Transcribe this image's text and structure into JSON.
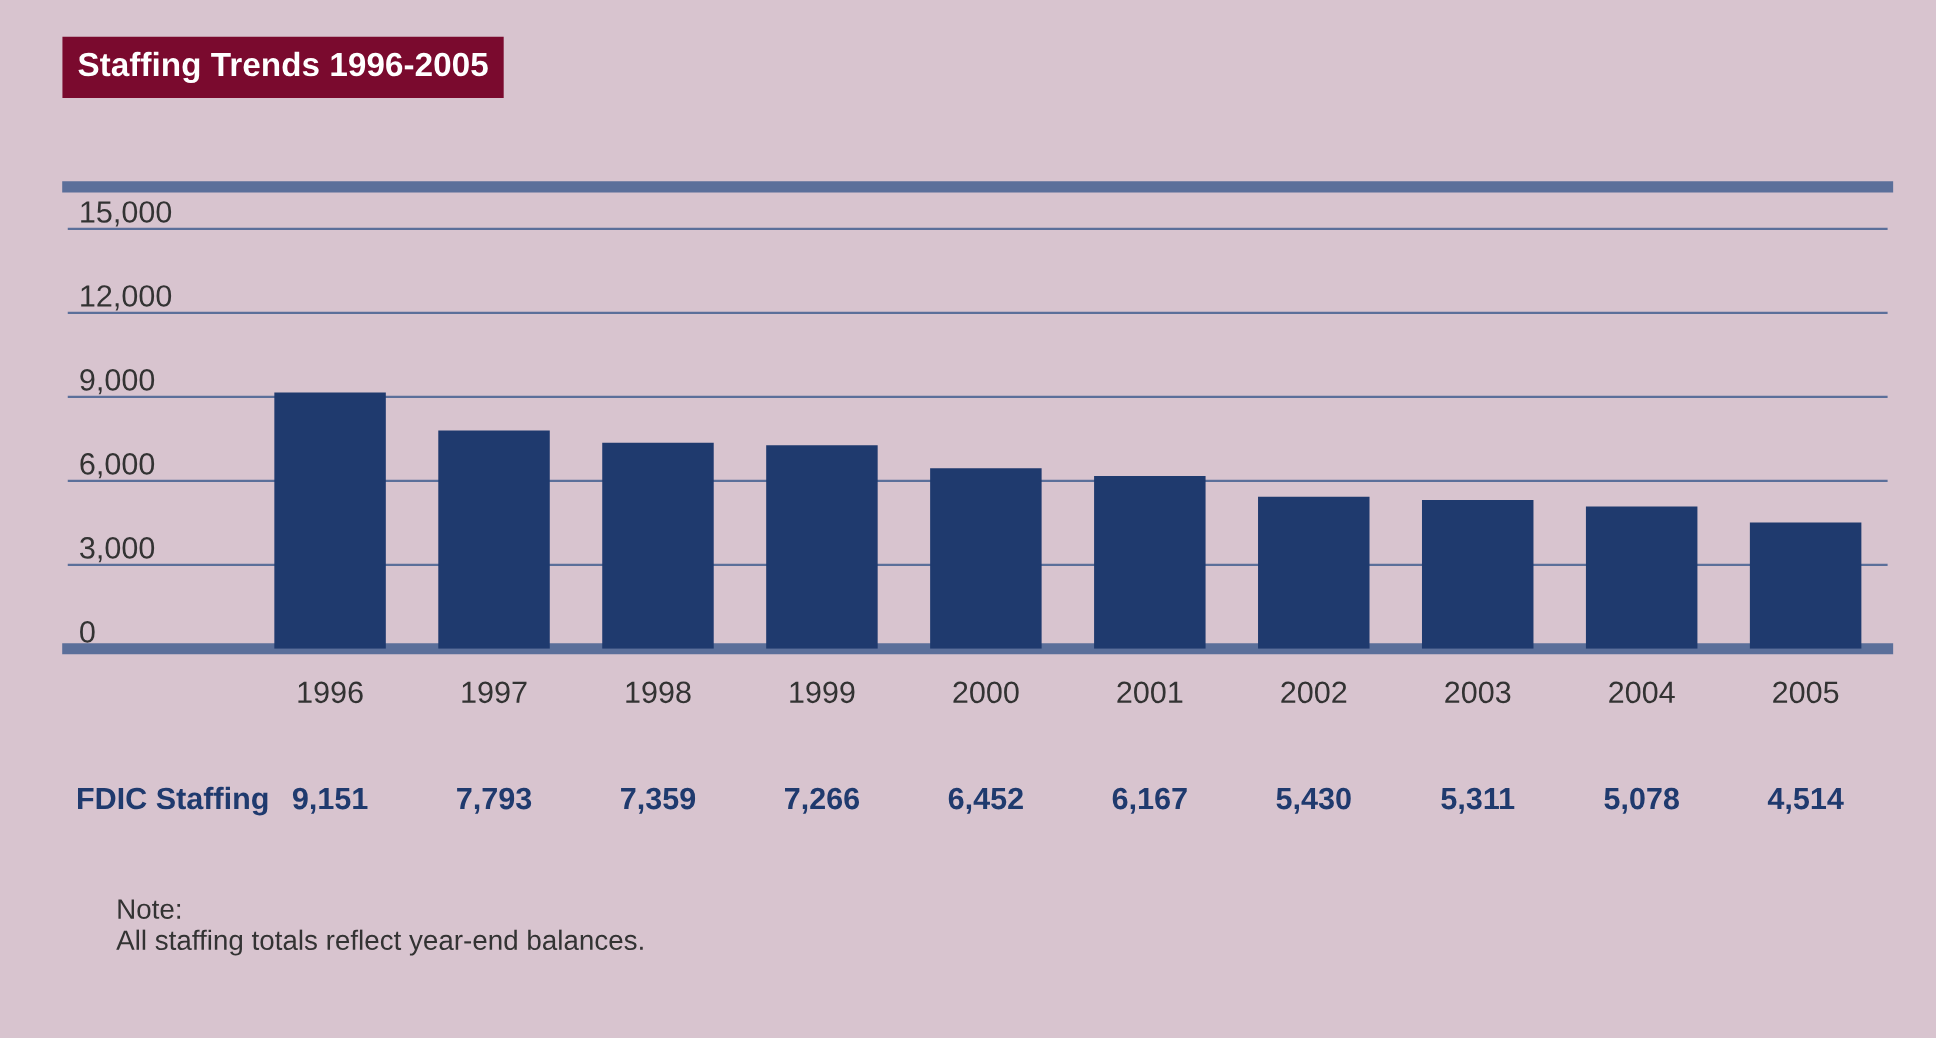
{
  "chart_data": {
    "type": "bar",
    "title": "Staffing Trends 1996-2005",
    "categories": [
      "1996",
      "1997",
      "1998",
      "1999",
      "2000",
      "2001",
      "2002",
      "2003",
      "2004",
      "2005"
    ],
    "series": [
      {
        "name": "FDIC Staffing",
        "color": "#1f3a6e",
        "values": [
          9151,
          7793,
          7359,
          7266,
          6452,
          6167,
          5430,
          5311,
          5078,
          4514
        ],
        "value_labels": [
          "9,151",
          "7,793",
          "7,359",
          "7,266",
          "6,452",
          "6,167",
          "5,430",
          "5,311",
          "5,078",
          "4,514"
        ]
      }
    ],
    "ylim": [
      0,
      16500
    ],
    "yticks": [
      {
        "value": 0,
        "label": "0"
      },
      {
        "value": 3000,
        "label": "3,000"
      },
      {
        "value": 6000,
        "label": "6,000"
      },
      {
        "value": 9000,
        "label": "9,000"
      },
      {
        "value": 12000,
        "label": "12,000"
      },
      {
        "value": 15000,
        "label": "15,000"
      }
    ],
    "grid": "y",
    "annotations": [
      "Note:",
      "All staffing totals reflect year-end balances."
    ]
  }
}
